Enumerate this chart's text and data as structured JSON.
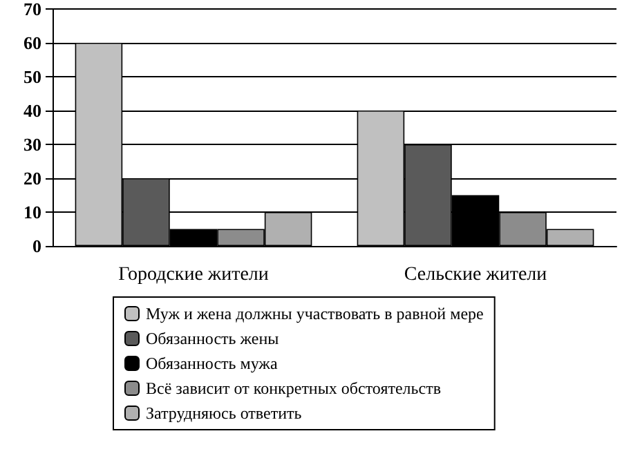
{
  "chart_data": {
    "type": "bar",
    "categories": [
      "Городские жители",
      "Сельские жители"
    ],
    "series": [
      {
        "name": "Муж и жена должны участвовать в равной мере",
        "color": "#c0c0c0",
        "values": [
          60,
          40
        ]
      },
      {
        "name": "Обязанность жены",
        "color": "#5a5a5a",
        "values": [
          20,
          30
        ]
      },
      {
        "name": "Обязанность мужа",
        "color": "#000000",
        "values": [
          5,
          15
        ]
      },
      {
        "name": "Всё зависит от конкретных обстоятельств",
        "color": "#8c8c8c",
        "values": [
          5,
          10
        ]
      },
      {
        "name": "Затрудняюсь ответить",
        "color": "#b0b0b0",
        "values": [
          10,
          5
        ]
      }
    ],
    "ylim": [
      0,
      70
    ],
    "yticks": [
      0,
      10,
      20,
      30,
      40,
      50,
      60,
      70
    ],
    "grid": "y",
    "legend": "bottom"
  }
}
